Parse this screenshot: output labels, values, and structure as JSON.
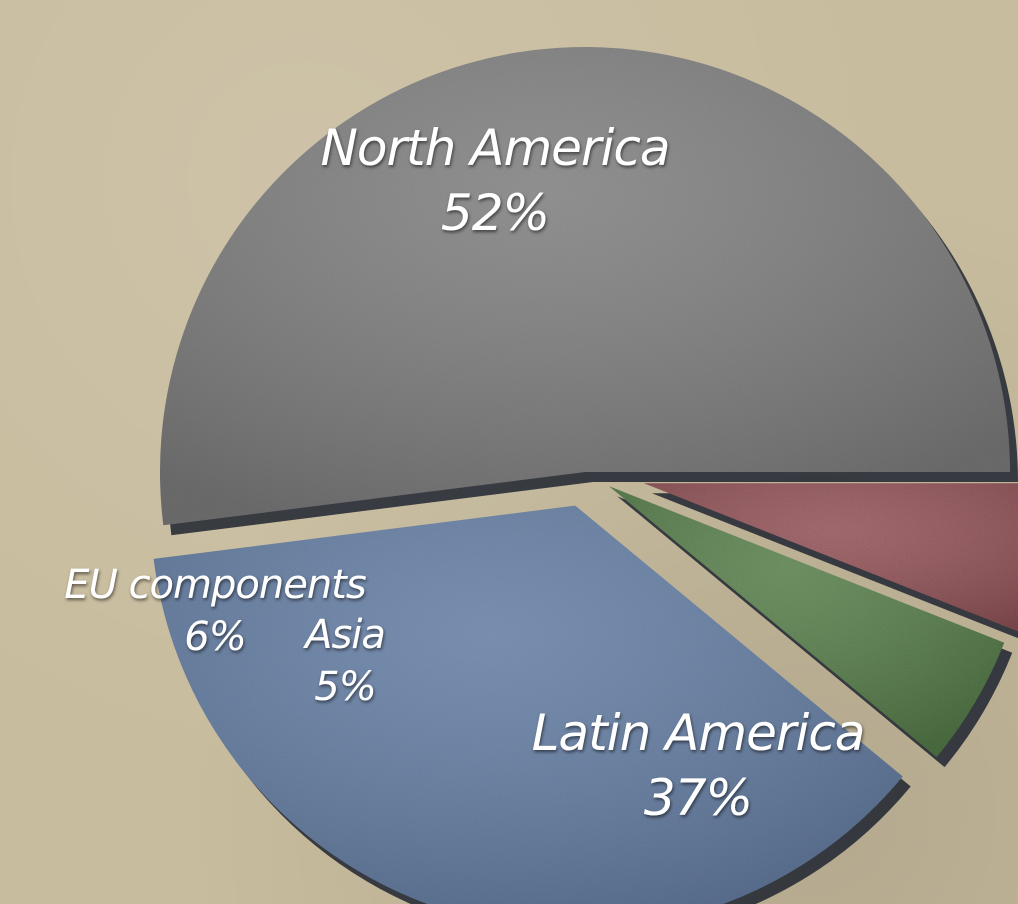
{
  "chart_data": {
    "type": "pie",
    "title": "",
    "legend": "none (labels on slices)",
    "slices": [
      {
        "label": "North America",
        "value": 52,
        "value_label": "52%",
        "color": "#7c7c7c",
        "exploded": false
      },
      {
        "label": "Latin America",
        "value": 37,
        "value_label": "37%",
        "color": "#5f7aa3",
        "exploded": true
      },
      {
        "label": "Asia",
        "value": 5,
        "value_label": "5%",
        "color": "#4f7a3f",
        "exploded": true
      },
      {
        "label": "EU components",
        "value": 6,
        "value_label": "6%",
        "color": "#8f4850",
        "exploded": true
      }
    ]
  },
  "colors": {
    "background": "#c8bc9e",
    "shadow": "#1e2530",
    "label_text": "#ffffff"
  }
}
